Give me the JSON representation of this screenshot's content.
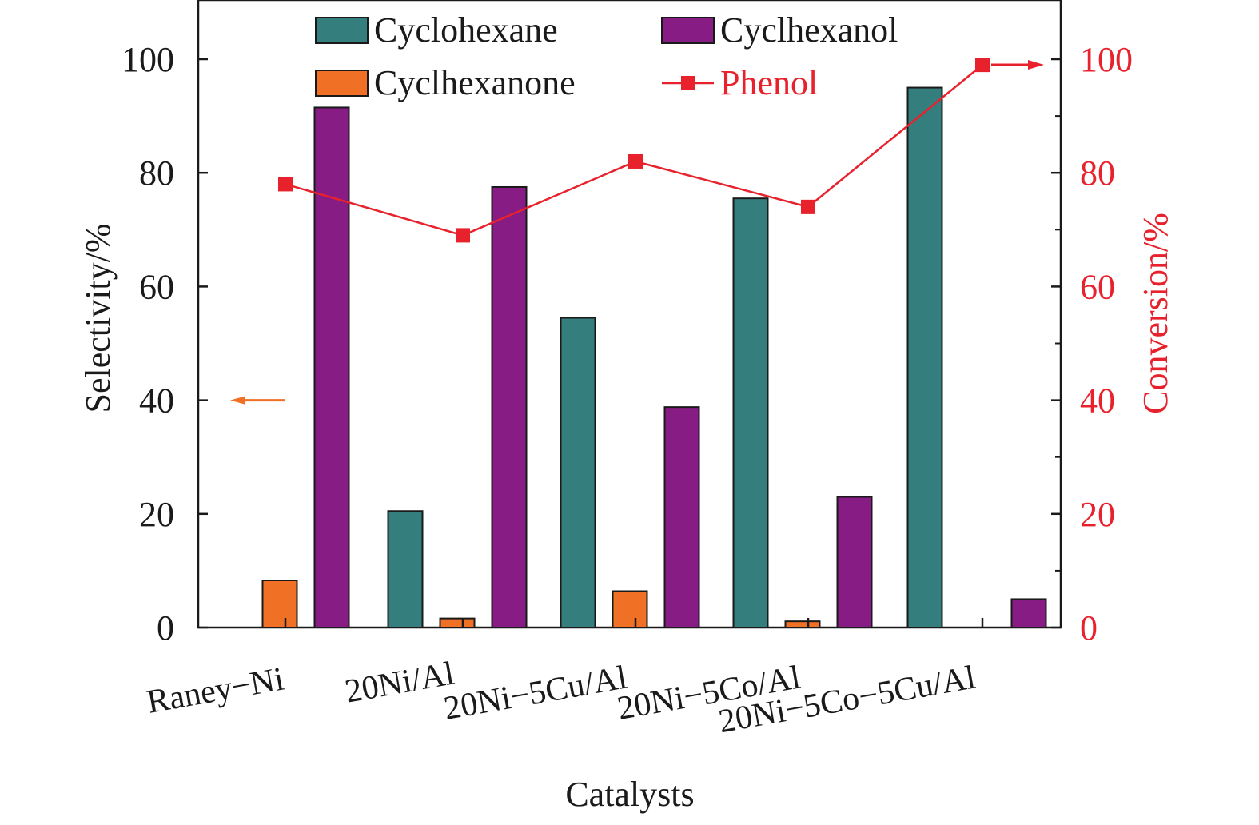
{
  "chart_data": {
    "type": "bar",
    "categories": [
      "Raney−Ni",
      "20Ni/Al",
      "20Ni−5Cu/Al",
      "20Ni−5Co/Al",
      "20Ni−5Co−5Cu/Al"
    ],
    "series": [
      {
        "name": "Cyclohexane",
        "type": "bar",
        "axis": "left",
        "color": "#357e7e",
        "values": [
          0,
          20.5,
          54.5,
          75.5,
          95
        ]
      },
      {
        "name": "Cyclhexanone",
        "type": "bar",
        "axis": "left",
        "color": "#f07026",
        "values": [
          8.3,
          1.6,
          6.4,
          1.1,
          0
        ]
      },
      {
        "name": "Cyclhexanol",
        "type": "bar",
        "axis": "left",
        "color": "#861c84",
        "values": [
          91.5,
          77.5,
          38.8,
          23,
          5
        ]
      },
      {
        "name": "Phenol",
        "type": "line",
        "axis": "right",
        "color": "#e8222d",
        "values": [
          78,
          69,
          82,
          74,
          99
        ]
      }
    ],
    "xlabel": "Catalysts",
    "ylabel": "Selectivity/%",
    "y2label": "Conversion/%",
    "ylim": [
      0,
      110
    ],
    "y2lim": [
      0,
      110
    ],
    "yticks": [
      "0",
      "20",
      "40",
      "60",
      "80",
      "100"
    ],
    "y2ticks": [
      "0",
      "20",
      "40",
      "60",
      "80",
      "100"
    ],
    "legend_position": "top",
    "grid": false,
    "axis_indicators": [
      {
        "points_to": "left",
        "series": "bars",
        "color": "#f07026"
      },
      {
        "points_to": "right",
        "series": "Phenol",
        "color": "#e8222d"
      }
    ]
  }
}
